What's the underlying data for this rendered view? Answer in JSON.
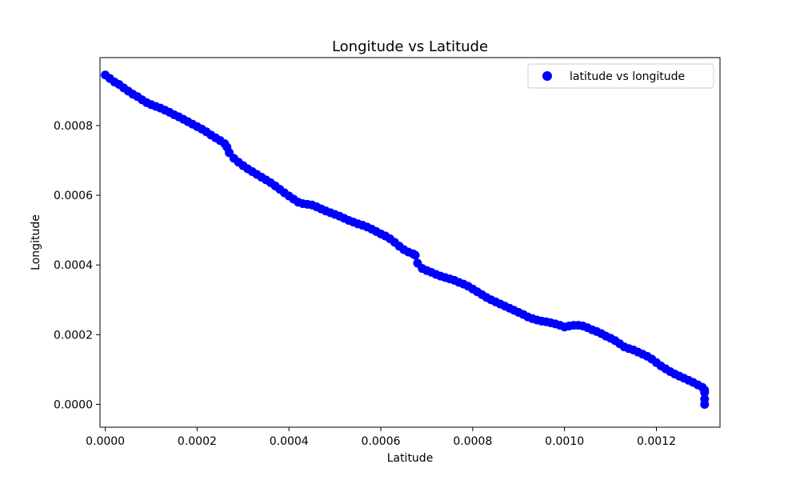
{
  "chart_data": {
    "type": "scatter",
    "title": "Longitude vs Latitude",
    "xlabel": "Latitude",
    "ylabel": "Longitude",
    "xlim": [
      -1.15e-05,
      0.0013385
    ],
    "ylim": [
      -6.55e-05,
      0.000995
    ],
    "xticks": [
      {
        "value": 0.0,
        "label": "0.0000"
      },
      {
        "value": 0.0002,
        "label": "0.0002"
      },
      {
        "value": 0.0004,
        "label": "0.0004"
      },
      {
        "value": 0.0006,
        "label": "0.0006"
      },
      {
        "value": 0.0008,
        "label": "0.0008"
      },
      {
        "value": 0.001,
        "label": "0.0010"
      },
      {
        "value": 0.0012,
        "label": "0.0012"
      }
    ],
    "yticks": [
      {
        "value": 0.0,
        "label": "0.0000"
      },
      {
        "value": 0.0002,
        "label": "0.0002"
      },
      {
        "value": 0.0004,
        "label": "0.0004"
      },
      {
        "value": 0.0006,
        "label": "0.0006"
      },
      {
        "value": 0.0008,
        "label": "0.0008"
      }
    ],
    "grid": false,
    "legend_position": "top-right",
    "series": [
      {
        "name": "latitude vs longitude",
        "color": "#0000ff",
        "points": [
          [
            0.0,
            0.000945
          ],
          [
            1e-05,
            0.000935
          ],
          [
            2e-05,
            0.000925
          ],
          [
            3e-05,
            0.000918
          ],
          [
            4e-05,
            0.000908
          ],
          [
            5e-05,
            0.000899
          ],
          [
            6e-05,
            0.00089
          ],
          [
            7e-05,
            0.000883
          ],
          [
            8e-05,
            0.000874
          ],
          [
            9e-05,
            0.000866
          ],
          [
            0.0001,
            0.00086
          ],
          [
            0.00011,
            0.000855
          ],
          [
            0.00012,
            0.00085
          ],
          [
            0.00013,
            0.000844
          ],
          [
            0.00014,
            0.000838
          ],
          [
            0.00015,
            0.000831
          ],
          [
            0.00016,
            0.000825
          ],
          [
            0.00017,
            0.000818
          ],
          [
            0.00018,
            0.000811
          ],
          [
            0.00019,
            0.000804
          ],
          [
            0.0002,
            0.000797
          ],
          [
            0.00021,
            0.00079
          ],
          [
            0.00022,
            0.000782
          ],
          [
            0.00023,
            0.000773
          ],
          [
            0.00024,
            0.000765
          ],
          [
            0.00025,
            0.000757
          ],
          [
            0.00026,
            0.000748
          ],
          [
            0.000265,
            0.000738
          ],
          [
            0.00027,
            0.000722
          ],
          [
            0.00028,
            0.000706
          ],
          [
            0.00029,
            0.000695
          ],
          [
            0.0003,
            0.000685
          ],
          [
            0.00031,
            0.000676
          ],
          [
            0.00032,
            0.000668
          ],
          [
            0.00033,
            0.00066
          ],
          [
            0.00034,
            0.000652
          ],
          [
            0.00035,
            0.000644
          ],
          [
            0.00036,
            0.000636
          ],
          [
            0.00037,
            0.000627
          ],
          [
            0.00038,
            0.000617
          ],
          [
            0.00039,
            0.000607
          ],
          [
            0.0004,
            0.000598
          ],
          [
            0.00041,
            0.000589
          ],
          [
            0.00042,
            0.00058
          ],
          [
            0.00043,
            0.000576
          ],
          [
            0.00044,
            0.000574
          ],
          [
            0.00045,
            0.000572
          ],
          [
            0.00046,
            0.000567
          ],
          [
            0.00047,
            0.000561
          ],
          [
            0.00048,
            0.000555
          ],
          [
            0.00049,
            0.00055
          ],
          [
            0.0005,
            0.000545
          ],
          [
            0.00051,
            0.00054
          ],
          [
            0.00052,
            0.000534
          ],
          [
            0.00053,
            0.000528
          ],
          [
            0.00054,
            0.000523
          ],
          [
            0.00055,
            0.000518
          ],
          [
            0.00056,
            0.000514
          ],
          [
            0.00057,
            0.000509
          ],
          [
            0.00058,
            0.000503
          ],
          [
            0.00059,
            0.000496
          ],
          [
            0.0006,
            0.000489
          ],
          [
            0.00061,
            0.000483
          ],
          [
            0.00062,
            0.000475
          ],
          [
            0.00063,
            0.000465
          ],
          [
            0.00064,
            0.000454
          ],
          [
            0.00065,
            0.000444
          ],
          [
            0.00066,
            0.000437
          ],
          [
            0.00067,
            0.000432
          ],
          [
            0.000675,
            0.000428
          ],
          [
            0.00068,
            0.000405
          ],
          [
            0.00069,
            0.00039
          ],
          [
            0.0007,
            0.000384
          ],
          [
            0.00071,
            0.000379
          ],
          [
            0.00072,
            0.000373
          ],
          [
            0.00073,
            0.000368
          ],
          [
            0.00074,
            0.000364
          ],
          [
            0.00075,
            0.00036
          ],
          [
            0.00076,
            0.000356
          ],
          [
            0.00077,
            0.00035
          ],
          [
            0.00078,
            0.000345
          ],
          [
            0.00079,
            0.000339
          ],
          [
            0.0008,
            0.000331
          ],
          [
            0.00081,
            0.000323
          ],
          [
            0.00082,
            0.000315
          ],
          [
            0.00083,
            0.000307
          ],
          [
            0.00084,
            0.0003
          ],
          [
            0.00085,
            0.000294
          ],
          [
            0.00086,
            0.000288
          ],
          [
            0.00087,
            0.000282
          ],
          [
            0.00088,
            0.000276
          ],
          [
            0.00089,
            0.00027
          ],
          [
            0.0009,
            0.000264
          ],
          [
            0.00091,
            0.000258
          ],
          [
            0.00092,
            0.000251
          ],
          [
            0.00093,
            0.000246
          ],
          [
            0.00094,
            0.000242
          ],
          [
            0.00095,
            0.000239
          ],
          [
            0.00096,
            0.000237
          ],
          [
            0.00097,
            0.000234
          ],
          [
            0.00098,
            0.000231
          ],
          [
            0.00099,
            0.000227
          ],
          [
            0.001,
            0.000222
          ],
          [
            0.00101,
            0.000225
          ],
          [
            0.00102,
            0.000227
          ],
          [
            0.00103,
            0.000227
          ],
          [
            0.00104,
            0.000225
          ],
          [
            0.00105,
            0.00022
          ],
          [
            0.00106,
            0.000214
          ],
          [
            0.00107,
            0.000209
          ],
          [
            0.00108,
            0.000203
          ],
          [
            0.00109,
            0.000196
          ],
          [
            0.0011,
            0.00019
          ],
          [
            0.00111,
            0.000183
          ],
          [
            0.00112,
            0.000174
          ],
          [
            0.00113,
            0.000165
          ],
          [
            0.00114,
            0.00016
          ],
          [
            0.00115,
            0.000156
          ],
          [
            0.00116,
            0.00015
          ],
          [
            0.00117,
            0.000144
          ],
          [
            0.00118,
            0.000138
          ],
          [
            0.00119,
            0.00013
          ],
          [
            0.0012,
            0.00012
          ],
          [
            0.00121,
            0.00011
          ],
          [
            0.00122,
            0.000102
          ],
          [
            0.00123,
            9.4e-05
          ],
          [
            0.00124,
            8.7e-05
          ],
          [
            0.00125,
            8.1e-05
          ],
          [
            0.00126,
            7.5e-05
          ],
          [
            0.00127,
            6.9e-05
          ],
          [
            0.00128,
            6.3e-05
          ],
          [
            0.00129,
            5.6e-05
          ],
          [
            0.0013,
            4.9e-05
          ],
          [
            0.001305,
            4.1e-05
          ],
          [
            0.001305,
            3.4e-05
          ],
          [
            0.001305,
            1.5e-05
          ],
          [
            0.001305,
            0.0
          ]
        ]
      }
    ]
  }
}
